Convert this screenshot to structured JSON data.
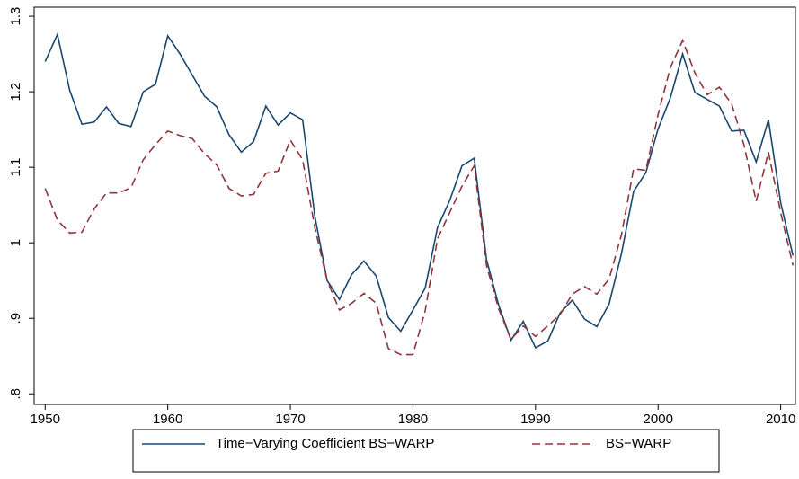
{
  "chart_data": {
    "type": "line",
    "x": [
      1950,
      1951,
      1952,
      1953,
      1954,
      1955,
      1956,
      1957,
      1958,
      1959,
      1960,
      1961,
      1962,
      1963,
      1964,
      1965,
      1966,
      1967,
      1968,
      1969,
      1970,
      1971,
      1972,
      1973,
      1974,
      1975,
      1976,
      1977,
      1978,
      1979,
      1980,
      1981,
      1982,
      1983,
      1984,
      1985,
      1986,
      1987,
      1988,
      1989,
      1990,
      1991,
      1992,
      1993,
      1994,
      1995,
      1996,
      1997,
      1998,
      1999,
      2000,
      2001,
      2002,
      2003,
      2004,
      2005,
      2006,
      2007,
      2008,
      2009,
      2010,
      2011
    ],
    "series": [
      {
        "name": "Time−Varying Coefficient BS−WARP",
        "color": "#1a476f",
        "dash": "solid",
        "values": [
          1.24,
          1.276,
          1.202,
          1.157,
          1.16,
          1.18,
          1.158,
          1.154,
          1.2,
          1.21,
          1.274,
          1.25,
          1.222,
          1.194,
          1.18,
          1.143,
          1.12,
          1.134,
          1.181,
          1.156,
          1.172,
          1.163,
          1.035,
          0.95,
          0.925,
          0.958,
          0.976,
          0.956,
          0.901,
          0.883,
          0.911,
          0.94,
          1.02,
          1.056,
          1.102,
          1.112,
          0.978,
          0.917,
          0.871,
          0.896,
          0.861,
          0.87,
          0.907,
          0.924,
          0.899,
          0.889,
          0.919,
          0.985,
          1.068,
          1.093,
          1.151,
          1.192,
          1.25,
          1.199,
          1.19,
          1.181,
          1.148,
          1.149,
          1.107,
          1.163,
          1.053,
          0.983
        ]
      },
      {
        "name": "BS−WARP",
        "color": "#90353b",
        "dash": "dashed",
        "values": [
          1.072,
          1.03,
          1.013,
          1.014,
          1.045,
          1.066,
          1.066,
          1.073,
          1.11,
          1.13,
          1.148,
          1.142,
          1.138,
          1.118,
          1.103,
          1.072,
          1.062,
          1.064,
          1.092,
          1.095,
          1.136,
          1.11,
          1.02,
          0.95,
          0.911,
          0.92,
          0.933,
          0.92,
          0.86,
          0.852,
          0.852,
          0.91,
          1.005,
          1.04,
          1.075,
          1.102,
          0.97,
          0.912,
          0.872,
          0.89,
          0.876,
          0.89,
          0.905,
          0.932,
          0.942,
          0.932,
          0.952,
          1.01,
          1.098,
          1.096,
          1.17,
          1.232,
          1.268,
          1.225,
          1.196,
          1.206,
          1.184,
          1.13,
          1.055,
          1.12,
          1.04,
          0.97
        ]
      }
    ],
    "xlim": [
      1949.1,
      2011.2
    ],
    "xticks": [
      1950,
      1960,
      1970,
      1980,
      1990,
      2000,
      2010
    ],
    "ylim": [
      0.786,
      1.312
    ],
    "yticks": [
      {
        "value": 0.8,
        "label": ".8"
      },
      {
        "value": 0.9,
        "label": ".9"
      },
      1,
      1.1,
      1.2,
      1.3
    ],
    "grid": false,
    "legend": "bottom"
  }
}
